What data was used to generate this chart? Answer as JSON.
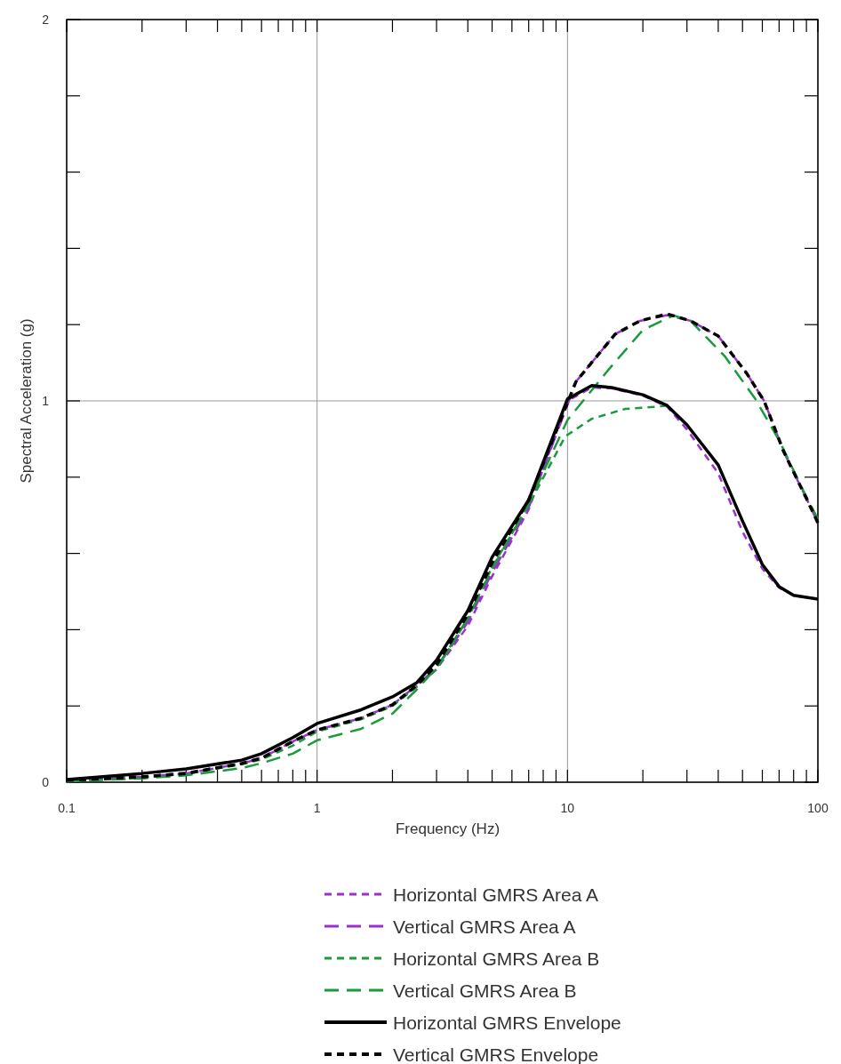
{
  "chart_data": {
    "type": "line",
    "xlabel": "Frequency (Hz)",
    "ylabel": "Spectral Acceleration (g)",
    "log": "x",
    "grid": true,
    "legend": "bottom",
    "xlim": [
      0.1,
      100
    ],
    "ylim": [
      0,
      2
    ],
    "xticks": [
      0.1,
      {
        "value": 0.2,
        "label": null
      },
      {
        "value": 0.3,
        "label": null
      },
      {
        "value": 0.4,
        "label": null
      },
      {
        "value": 0.5,
        "label": null
      },
      {
        "value": 0.6,
        "label": null
      },
      {
        "value": 0.7,
        "label": null
      },
      {
        "value": 0.8,
        "label": null
      },
      {
        "value": 0.9,
        "label": null
      },
      1,
      {
        "value": 2,
        "label": null
      },
      {
        "value": 3,
        "label": null
      },
      {
        "value": 4,
        "label": null
      },
      {
        "value": 5,
        "label": null
      },
      {
        "value": 6,
        "label": null
      },
      {
        "value": 7,
        "label": null
      },
      {
        "value": 8,
        "label": null
      },
      {
        "value": 9,
        "label": null
      },
      10,
      {
        "value": 20,
        "label": null
      },
      {
        "value": 30,
        "label": null
      },
      {
        "value": 40,
        "label": null
      },
      {
        "value": 50,
        "label": null
      },
      {
        "value": 60,
        "label": null
      },
      {
        "value": 70,
        "label": null
      },
      {
        "value": 80,
        "label": null
      },
      {
        "value": 90,
        "label": null
      },
      100
    ],
    "yticks": [
      0,
      {
        "value": 0.2,
        "label": null
      },
      {
        "value": 0.4,
        "label": null
      },
      {
        "value": 0.6,
        "label": null
      },
      {
        "value": 0.8,
        "label": null
      },
      1,
      {
        "value": 1.2,
        "label": null
      },
      {
        "value": 1.4,
        "label": null
      },
      {
        "value": 1.6,
        "label": null
      },
      {
        "value": 1.8,
        "label": null
      },
      2
    ],
    "series": [
      {
        "name": "Horizontal GMRS Area A",
        "color": "#9b30d0",
        "line_style": "dotted",
        "x": [
          0.1,
          0.2,
          0.3,
          0.5,
          0.6,
          0.8,
          1,
          1.5,
          2,
          2.5,
          3,
          4,
          5,
          7,
          10,
          12.5,
          15,
          20,
          25,
          30,
          40,
          50,
          60,
          70,
          80,
          100
        ],
        "values": [
          0.005,
          0.015,
          0.025,
          0.05,
          0.065,
          0.105,
          0.137,
          0.168,
          0.203,
          0.254,
          0.296,
          0.41,
          0.54,
          0.715,
          1.0,
          1.035,
          1.033,
          1.014,
          0.985,
          0.925,
          0.81,
          0.657,
          0.56,
          0.51,
          0.49,
          0.48
        ]
      },
      {
        "name": "Vertical GMRS Area A",
        "color": "#9b30d0",
        "line_style": "dashed",
        "x": [
          0.1,
          0.2,
          0.3,
          0.5,
          0.6,
          0.8,
          1,
          1.5,
          2,
          2.5,
          3,
          4,
          5,
          7,
          10,
          10.8,
          15.5,
          19.5,
          25,
          31,
          40,
          52,
          61,
          73,
          90,
          100
        ],
        "values": [
          0.005,
          0.014,
          0.023,
          0.049,
          0.063,
          0.107,
          0.137,
          0.168,
          0.203,
          0.254,
          0.3,
          0.42,
          0.55,
          0.72,
          0.99,
          1.05,
          1.175,
          1.21,
          1.225,
          1.21,
          1.17,
          1.072,
          1.0,
          0.867,
          0.744,
          0.68
        ]
      },
      {
        "name": "Horizontal GMRS Area B",
        "color": "#1a9a3a",
        "line_style": "dotted",
        "x": [
          0.1,
          0.2,
          0.3,
          0.5,
          0.6,
          0.8,
          1,
          1.5,
          2,
          2.5,
          3,
          4,
          5,
          7,
          9.8,
          12.5,
          17,
          22,
          25
        ],
        "values": [
          0.003,
          0.012,
          0.022,
          0.047,
          0.06,
          0.096,
          0.133,
          0.165,
          0.2,
          0.25,
          0.296,
          0.429,
          0.564,
          0.727,
          0.907,
          0.953,
          0.979,
          0.984,
          0.988
        ]
      },
      {
        "name": "Vertical GMRS Area B",
        "color": "#1a9a3a",
        "line_style": "dashed",
        "x": [
          0.1,
          0.2,
          0.3,
          0.5,
          0.6,
          0.8,
          1,
          1.5,
          2,
          2.5,
          3,
          4,
          5,
          7,
          10,
          14.5,
          20,
          26.5,
          31,
          42.5,
          56,
          70,
          86,
          100
        ],
        "values": [
          0.002,
          0.01,
          0.018,
          0.037,
          0.05,
          0.075,
          0.11,
          0.14,
          0.18,
          0.243,
          0.3,
          0.43,
          0.56,
          0.73,
          0.95,
          1.08,
          1.186,
          1.224,
          1.21,
          1.117,
          1.007,
          0.897,
          0.774,
          0.69
        ]
      },
      {
        "name": "Horizontal GMRS Envelope",
        "color": "#000000",
        "line_style": "solid",
        "x": [
          0.1,
          0.2,
          0.3,
          0.5,
          0.6,
          0.8,
          1,
          1.5,
          2,
          2.5,
          3,
          4,
          5,
          7,
          10,
          12.5,
          15,
          20,
          25,
          30,
          40,
          50,
          60,
          70,
          80,
          100
        ],
        "values": [
          0.007,
          0.023,
          0.035,
          0.058,
          0.075,
          0.117,
          0.154,
          0.19,
          0.224,
          0.261,
          0.32,
          0.45,
          0.59,
          0.74,
          1.005,
          1.04,
          1.035,
          1.016,
          0.988,
          0.937,
          0.832,
          0.685,
          0.571,
          0.513,
          0.49,
          0.48
        ]
      },
      {
        "name": "Vertical GMRS Envelope",
        "color": "#000000",
        "line_style": "dotted",
        "x": [
          0.1,
          0.2,
          0.3,
          0.5,
          0.6,
          0.8,
          1,
          1.5,
          2,
          2.5,
          3,
          4,
          5,
          7,
          10,
          10.8,
          15.5,
          19.5,
          25,
          31,
          40,
          52,
          61,
          73,
          90,
          100
        ],
        "values": [
          0.005,
          0.014,
          0.023,
          0.049,
          0.063,
          0.107,
          0.137,
          0.168,
          0.203,
          0.254,
          0.308,
          0.44,
          0.575,
          0.74,
          0.995,
          1.05,
          1.175,
          1.21,
          1.228,
          1.21,
          1.17,
          1.072,
          1.0,
          0.867,
          0.744,
          0.68
        ]
      }
    ]
  }
}
